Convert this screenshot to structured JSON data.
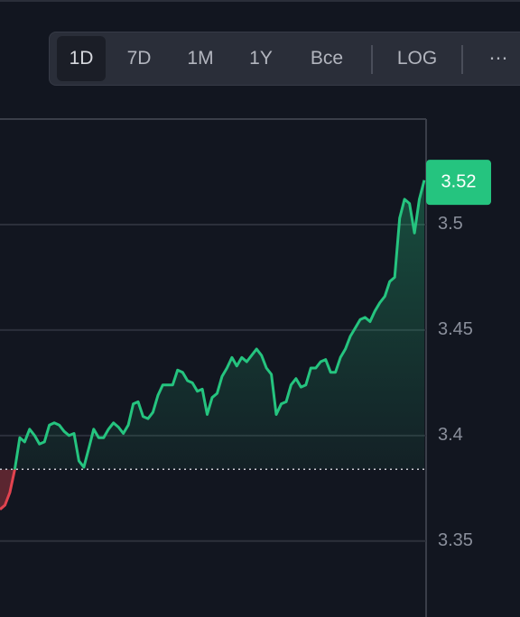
{
  "toolbar": {
    "buttons": [
      "1D",
      "7D",
      "1M",
      "1Y",
      "Bce",
      "LOG",
      "⋯"
    ]
  },
  "chart_data": {
    "type": "line",
    "values": [
      3.365,
      3.367,
      3.373,
      3.384,
      3.399,
      3.397,
      3.403,
      3.4,
      3.396,
      3.397,
      3.405,
      3.406,
      3.405,
      3.402,
      3.4,
      3.401,
      3.388,
      3.385,
      3.394,
      3.403,
      3.399,
      3.399,
      3.403,
      3.406,
      3.404,
      3.401,
      3.405,
      3.415,
      3.416,
      3.409,
      3.408,
      3.411,
      3.419,
      3.424,
      3.424,
      3.424,
      3.431,
      3.43,
      3.426,
      3.425,
      3.421,
      3.422,
      3.41,
      3.418,
      3.42,
      3.428,
      3.432,
      3.437,
      3.433,
      3.437,
      3.435,
      3.438,
      3.441,
      3.438,
      3.432,
      3.429,
      3.41,
      3.415,
      3.416,
      3.424,
      3.427,
      3.423,
      3.424,
      3.432,
      3.432,
      3.435,
      3.436,
      3.43,
      3.43,
      3.437,
      3.441,
      3.447,
      3.451,
      3.455,
      3.456,
      3.454,
      3.459,
      3.463,
      3.466,
      3.473,
      3.475,
      3.503,
      3.512,
      3.51,
      3.496,
      3.512,
      3.521
    ],
    "baseline": 3.384,
    "last_price": 3.52,
    "up_color": "#25c47f",
    "down_color": "#e2434f",
    "ylim": [
      3.314,
      3.55
    ],
    "yticks": [
      3.35,
      3.4,
      3.45,
      3.5
    ],
    "grid": true
  }
}
